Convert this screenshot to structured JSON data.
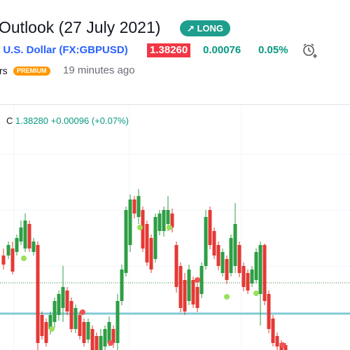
{
  "header": {
    "title": "Outlook (27 July 2021)",
    "direction": "LONG"
  },
  "symbol": {
    "name": "/ U.S. Dollar",
    "ticker": "(FX:GBPUSD)",
    "price": "1.38260",
    "change": "0.00076",
    "change_percent": "0.05%"
  },
  "author": {
    "name": "rs",
    "badge": "PREMIUM",
    "time": "19 minutes ago"
  },
  "chart_legend": {
    "label": "C",
    "close": "1.38280",
    "change": "+0.00096 (+0.07%)"
  }
}
